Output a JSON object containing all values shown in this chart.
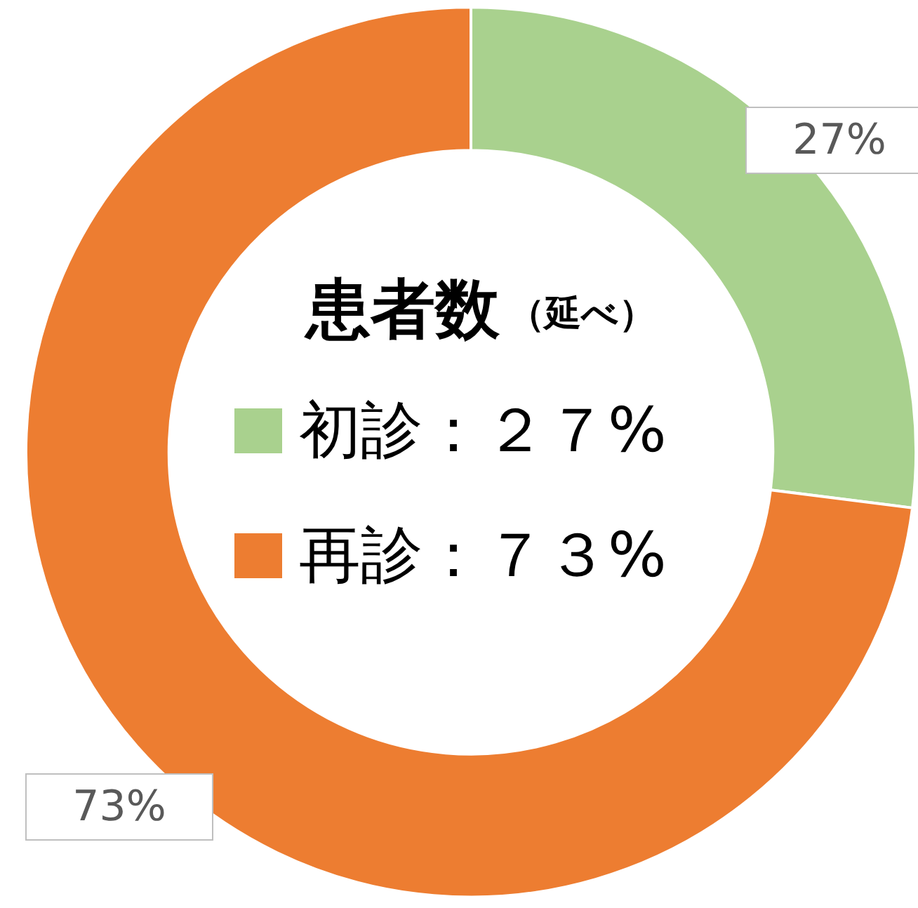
{
  "chart_data": {
    "type": "donut",
    "title": "患者数",
    "subtitle": "（延べ）",
    "categories": [
      "初診：２７%",
      "再診：７３%"
    ],
    "values": [
      27,
      73
    ],
    "colors": [
      "#a9d18e",
      "#ed7d31"
    ],
    "value_labels": [
      "27%",
      "73%"
    ],
    "legend": "center"
  }
}
